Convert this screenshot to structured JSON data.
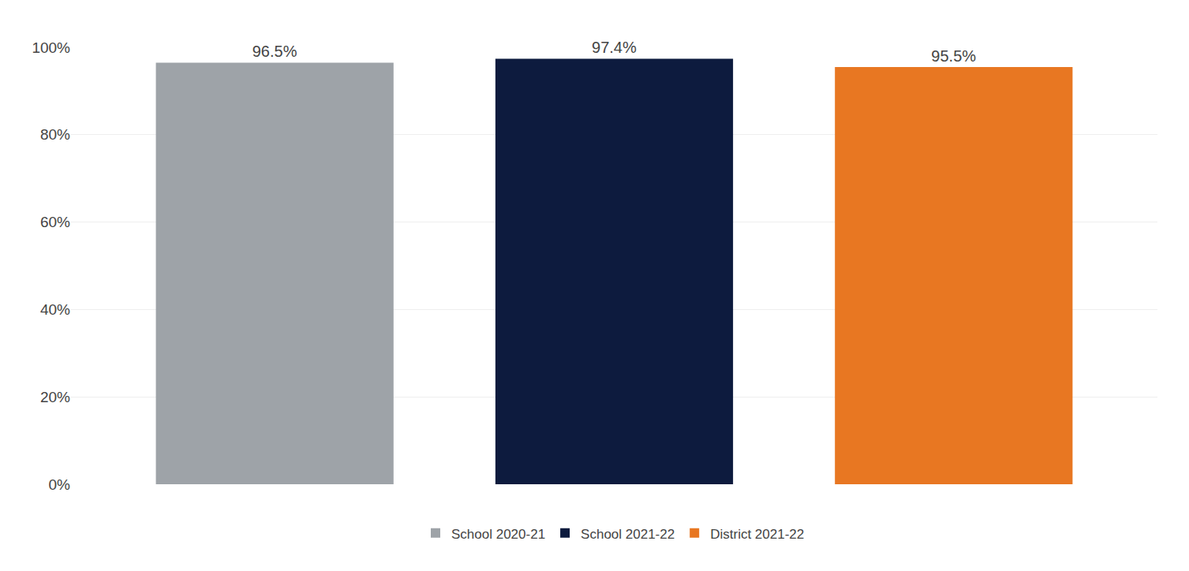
{
  "chart_data": {
    "type": "bar",
    "categories": [
      "School 2020-21",
      "School 2021-22",
      "District 2021-22"
    ],
    "values": [
      0.965,
      0.974,
      0.955
    ],
    "value_labels": [
      "96.5%",
      "97.4%",
      "95.5%"
    ],
    "colors": [
      "#9EA3A8",
      "#0D1B3E",
      "#E87722"
    ],
    "ylim": [
      0,
      1.0
    ],
    "yticks": [
      {
        "value": 0.0,
        "label": "0%"
      },
      {
        "value": 0.2,
        "label": "20%"
      },
      {
        "value": 0.4,
        "label": "40%"
      },
      {
        "value": 0.6,
        "label": "60%"
      },
      {
        "value": 0.8,
        "label": "80%"
      },
      {
        "value": 1.0,
        "label": "100%"
      }
    ],
    "grid": true,
    "data_labels": true,
    "legend": "bottom",
    "tick_labels": "y"
  }
}
